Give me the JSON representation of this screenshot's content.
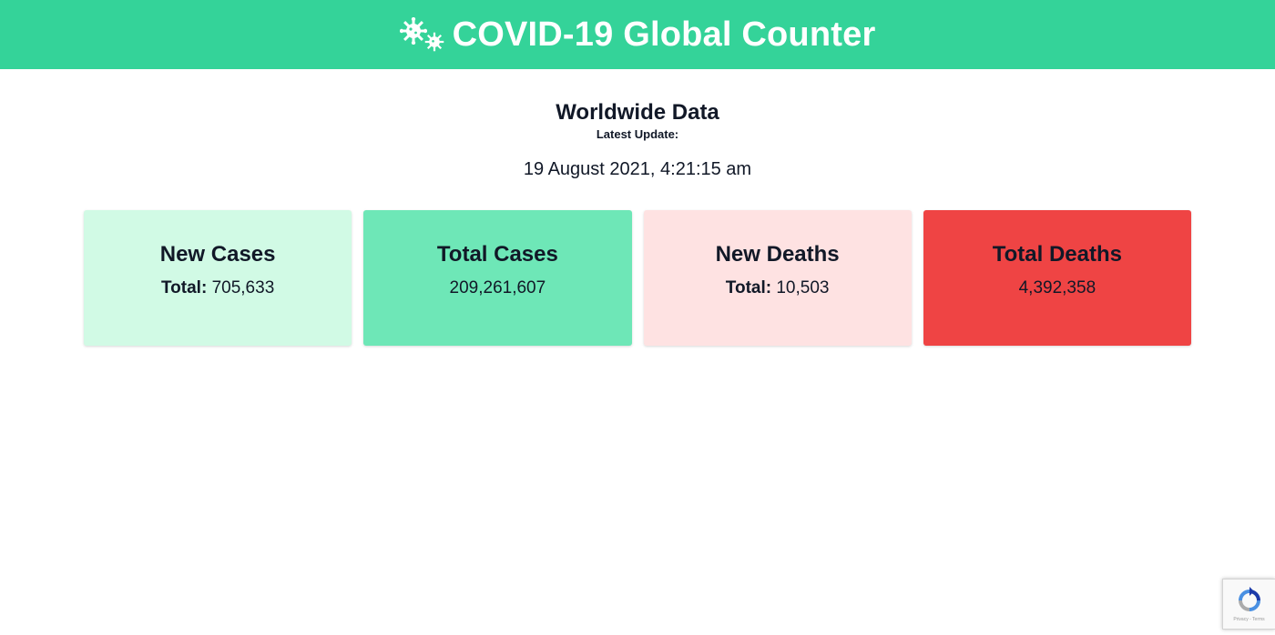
{
  "header": {
    "title": "COVID-19 Global Counter",
    "icon": "virus-icon",
    "background": "#34d399"
  },
  "summary": {
    "title": "Worldwide Data",
    "subtitle": "Latest Update:",
    "date": "19 August 2021, 4:21:15 am"
  },
  "cards": [
    {
      "title": "New Cases",
      "prefix": "Total:",
      "value": "705,633",
      "bg": "#d1fae5"
    },
    {
      "title": "Total Cases",
      "prefix": "",
      "value": "209,261,607",
      "bg": "#6ee7b7"
    },
    {
      "title": "New Deaths",
      "prefix": "Total:",
      "value": "10,503",
      "bg": "#fee2e2"
    },
    {
      "title": "Total Deaths",
      "prefix": "",
      "value": "4,392,358",
      "bg": "#ef4444"
    }
  ],
  "recaptcha": {
    "icon": "recaptcha-icon",
    "caption": "Privacy - Terms"
  }
}
